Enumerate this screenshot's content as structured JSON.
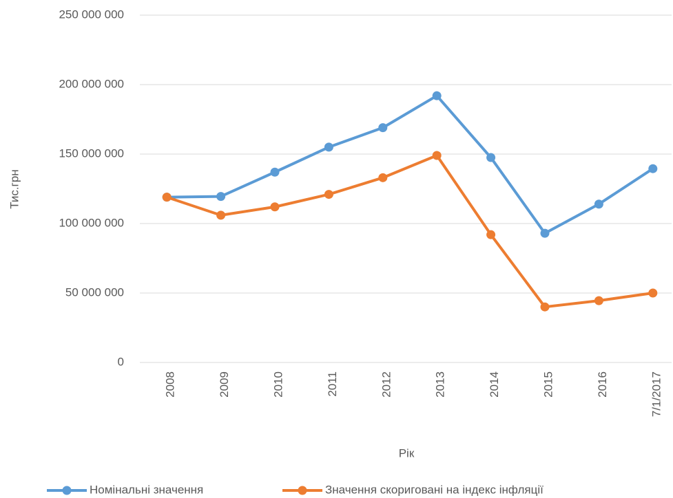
{
  "chart_data": {
    "type": "line",
    "y_label": "Тис.грн",
    "x_label": "Рік",
    "categories": [
      "2008",
      "2009",
      "2010",
      "2011",
      "2012",
      "2013",
      "2014",
      "2015",
      "2016",
      "7/1/2017"
    ],
    "series": [
      {
        "name": "Номінальні значення",
        "color": "#5b9bd5",
        "values": [
          119000000,
          119500000,
          137000000,
          155000000,
          169000000,
          192000000,
          147500000,
          93000000,
          114000000,
          139500000
        ]
      },
      {
        "name": "Значення скориговані на індекс інфляції",
        "color": "#ed7d31",
        "values": [
          119000000,
          106000000,
          112000000,
          121000000,
          133000000,
          149000000,
          92000000,
          40000000,
          44500000,
          50000000
        ]
      }
    ],
    "ylim": [
      0,
      250000000
    ],
    "yticks": [
      {
        "value": 0,
        "label": "0"
      },
      {
        "value": 50000000,
        "label": "50 000 000"
      },
      {
        "value": 100000000,
        "label": "100 000 000"
      },
      {
        "value": 150000000,
        "label": "150 000 000"
      },
      {
        "value": 200000000,
        "label": "200 000 000"
      },
      {
        "value": 250000000,
        "label": "250 000 000"
      }
    ],
    "grid": true,
    "legend": "bottom"
  }
}
